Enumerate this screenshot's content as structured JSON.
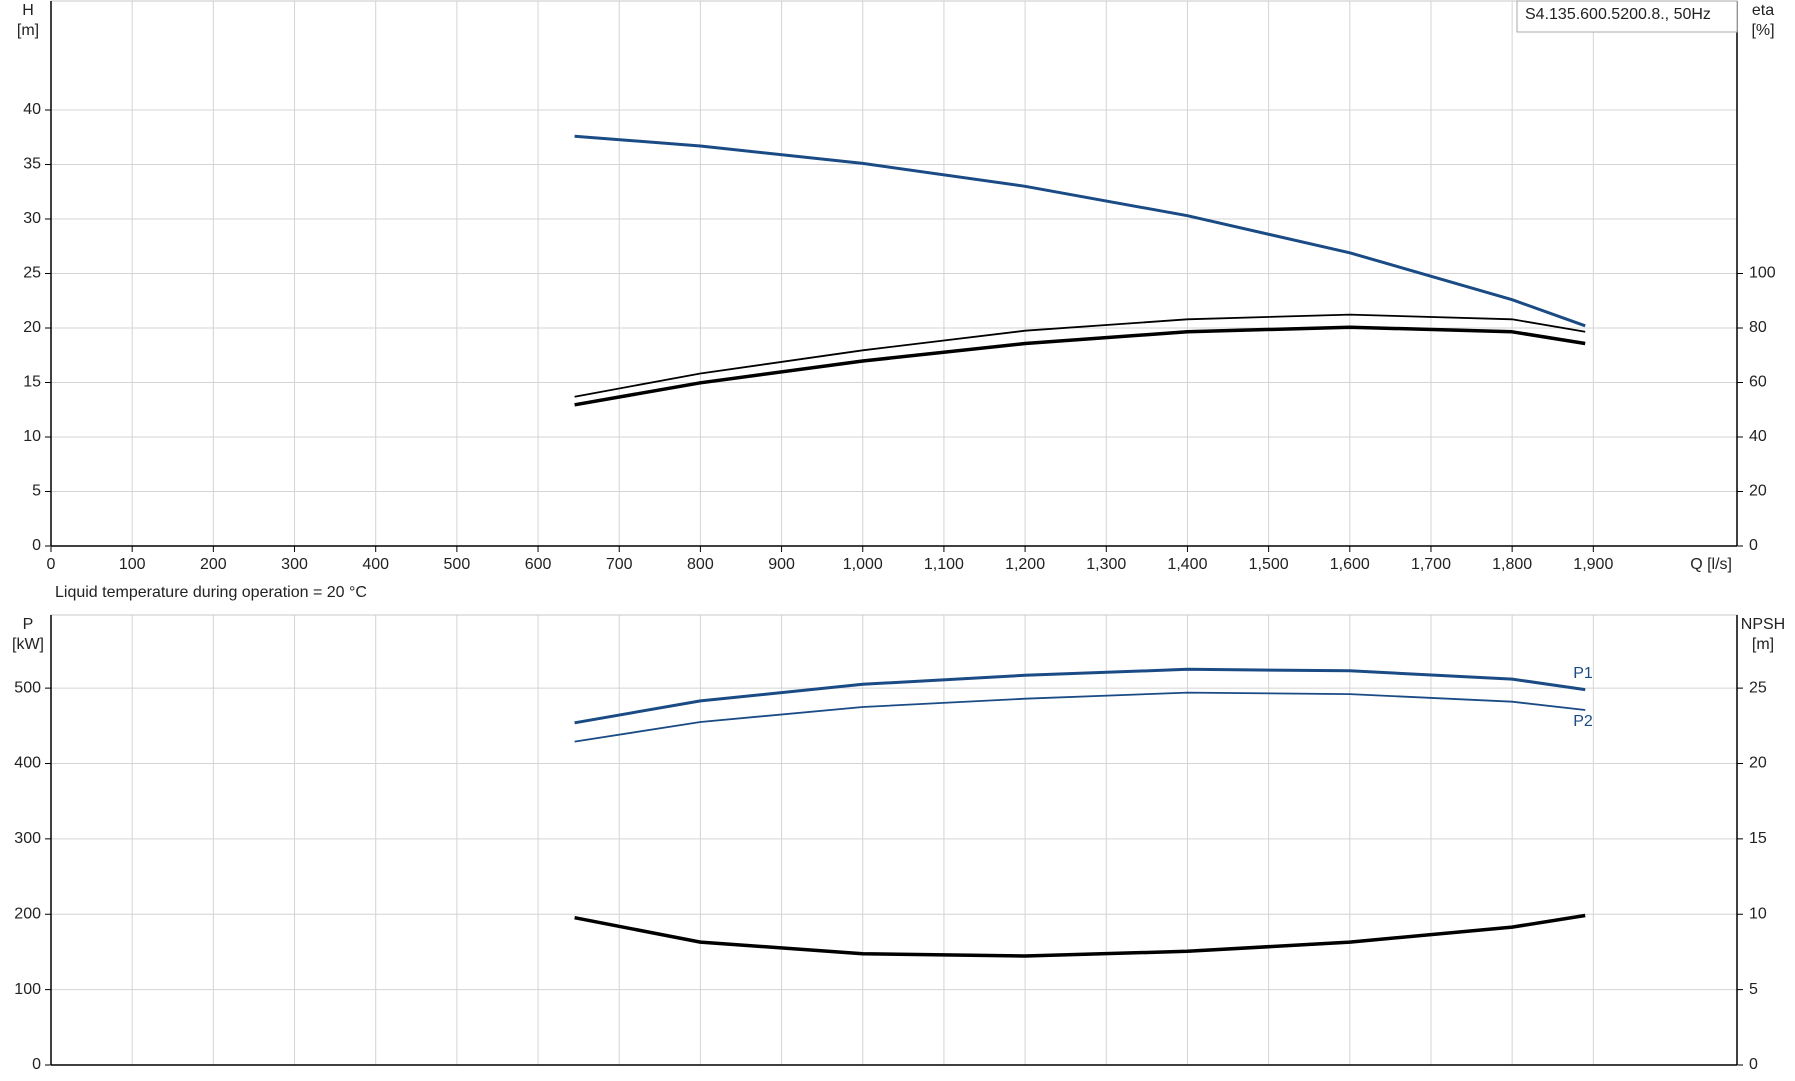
{
  "chart_data": [
    {
      "type": "line",
      "title": "S4.135.600.5200.8., 50Hz",
      "xlabel": "Q [l/s]",
      "ylabel": "H",
      "yunit": "[m]",
      "y2label": "eta",
      "y2unit": "[%]",
      "xlim": [
        0,
        2077
      ],
      "xticks": [
        0,
        100,
        200,
        300,
        400,
        500,
        600,
        700,
        800,
        900,
        {
          "value": 1000,
          "label": "1,000"
        },
        {
          "value": 1100,
          "label": "1,100"
        },
        {
          "value": 1200,
          "label": "1,200"
        },
        {
          "value": 1300,
          "label": "1,300"
        },
        {
          "value": 1400,
          "label": "1,400"
        },
        {
          "value": 1500,
          "label": "1,500"
        },
        {
          "value": 1600,
          "label": "1,600"
        },
        {
          "value": 1700,
          "label": "1,700"
        },
        {
          "value": 1800,
          "label": "1,800"
        },
        {
          "value": 1900,
          "label": "1,900"
        }
      ],
      "ylim": [
        0,
        50
      ],
      "yticks": [
        0,
        5,
        10,
        15,
        20,
        25,
        30,
        35,
        40
      ],
      "y2lim": [
        0,
        200
      ],
      "y2ticks": [
        0,
        20,
        40,
        60,
        80,
        100
      ],
      "grid": true,
      "x": [
        645,
        800,
        1000,
        1200,
        1400,
        1600,
        1800,
        1890
      ],
      "series": [
        {
          "color": "#1a4b85",
          "linewidth": 3,
          "values": [
            37.6,
            36.7,
            35.1,
            33.0,
            30.3,
            26.9,
            22.6,
            20.2
          ]
        },
        {
          "color": "#000000",
          "linewidth": 1.8,
          "axis": "y2",
          "values": [
            54.8,
            63.3,
            71.8,
            79.0,
            83.2,
            84.9,
            83.2,
            78.6
          ]
        },
        {
          "color": "#000000",
          "linewidth": 3.5,
          "axis": "y2",
          "values": [
            51.8,
            59.9,
            67.9,
            74.3,
            78.6,
            80.3,
            78.6,
            74.3
          ]
        }
      ]
    },
    {
      "type": "line",
      "annotation": "Liquid temperature during operation = 20 °C",
      "ylabel": "P",
      "yunit": "[kW]",
      "y2label": "NPSH",
      "y2unit": "[m]",
      "xlim": [
        0,
        2077
      ],
      "ylim": [
        0,
        597
      ],
      "yticks": [
        0,
        100,
        200,
        300,
        400,
        500
      ],
      "y2lim": [
        0,
        29.85
      ],
      "y2ticks": [
        0,
        5,
        10,
        15,
        20,
        25
      ],
      "grid": true,
      "x": [
        645,
        800,
        1000,
        1200,
        1400,
        1600,
        1800,
        1890
      ],
      "series": [
        {
          "name": "P1",
          "color": "#1a4b85",
          "linewidth": 3,
          "values": [
            454,
            483,
            505,
            517,
            525,
            523,
            512,
            498
          ]
        },
        {
          "name": "P2",
          "color": "#1a4b85",
          "linewidth": 1.8,
          "values": [
            429,
            455,
            475,
            486,
            494,
            492,
            482,
            471
          ]
        },
        {
          "color": "#000000",
          "linewidth": 3.5,
          "axis": "y2",
          "values": [
            9.77,
            8.15,
            7.38,
            7.23,
            7.54,
            8.15,
            9.15,
            9.92
          ]
        }
      ]
    }
  ]
}
